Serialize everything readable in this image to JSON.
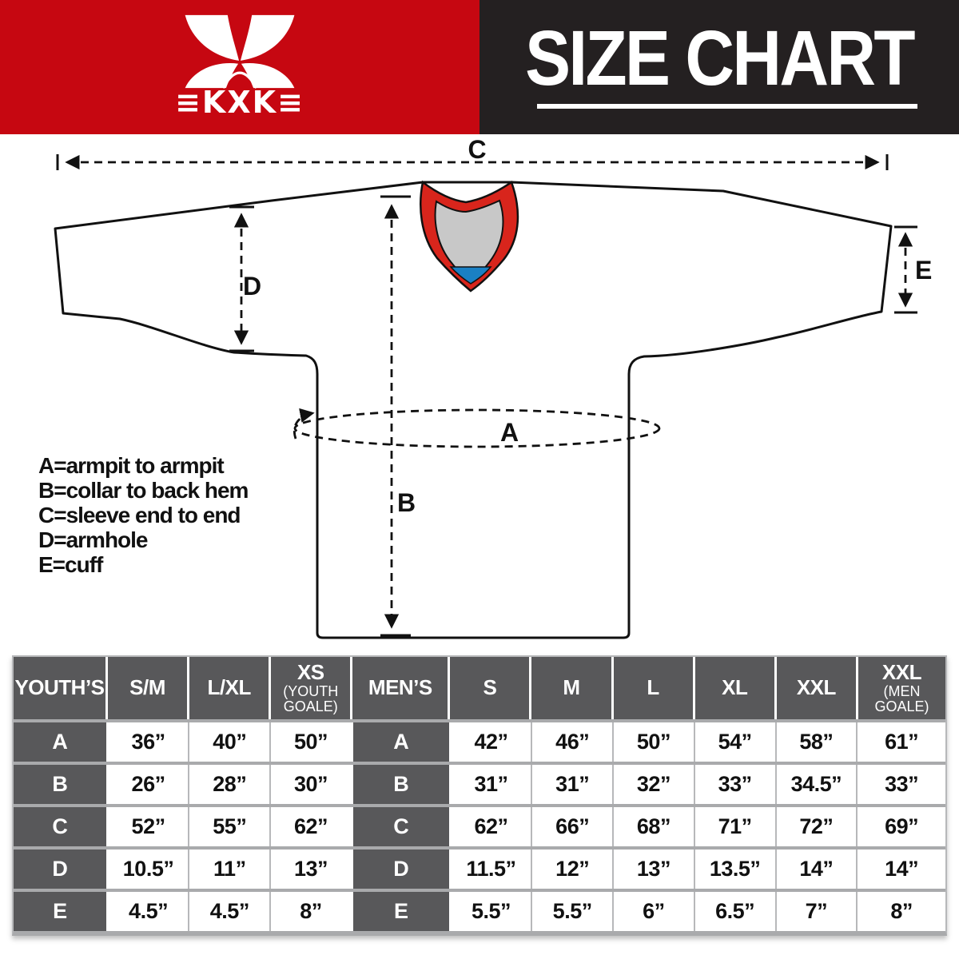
{
  "banner": {
    "brand_text": "≡KXK≡",
    "title": "SIZE CHART",
    "red_color": "#c60711",
    "black_color": "#242021"
  },
  "diagram": {
    "labels": {
      "a": "A",
      "b": "B",
      "c": "C",
      "d": "D",
      "e": "E"
    },
    "legend": [
      "A=armpit to armpit",
      "B=collar to back hem",
      "C=sleeve end to end",
      "D=armhole",
      "E=cuff"
    ],
    "collar_red": "#d8251c",
    "collar_gray": "#c8c8c8",
    "collar_blue": "#1a80c4"
  },
  "table": {
    "header_bg": "#58585a",
    "separator_color": "#a9aaac",
    "columns": [
      {
        "label": "YOUTH’S",
        "sub": ""
      },
      {
        "label": "S/M",
        "sub": ""
      },
      {
        "label": "L/XL",
        "sub": ""
      },
      {
        "label": "XS",
        "sub": "(YOUTH GOALE)"
      },
      {
        "label": "MEN’S",
        "sub": ""
      },
      {
        "label": "S",
        "sub": ""
      },
      {
        "label": "M",
        "sub": ""
      },
      {
        "label": "L",
        "sub": ""
      },
      {
        "label": "XL",
        "sub": ""
      },
      {
        "label": "XXL",
        "sub": ""
      },
      {
        "label": "XXL",
        "sub": "(MEN GOALE)"
      }
    ],
    "rows": [
      [
        "A",
        "36”",
        "40”",
        "50”",
        "A",
        "42”",
        "46”",
        "50”",
        "54”",
        "58”",
        "61”"
      ],
      [
        "B",
        "26”",
        "28”",
        "30”",
        "B",
        "31”",
        "31”",
        "32”",
        "33”",
        "34.5”",
        "33”"
      ],
      [
        "C",
        "52”",
        "55”",
        "62”",
        "C",
        "62”",
        "66”",
        "68”",
        "71”",
        "72”",
        "69”"
      ],
      [
        "D",
        "10.5”",
        "11”",
        "13”",
        "D",
        "11.5”",
        "12”",
        "13”",
        "13.5”",
        "14”",
        "14”"
      ],
      [
        "E",
        "4.5”",
        "4.5”",
        "8”",
        "E",
        "5.5”",
        "5.5”",
        "6”",
        "6.5”",
        "7”",
        "8”"
      ]
    ]
  }
}
